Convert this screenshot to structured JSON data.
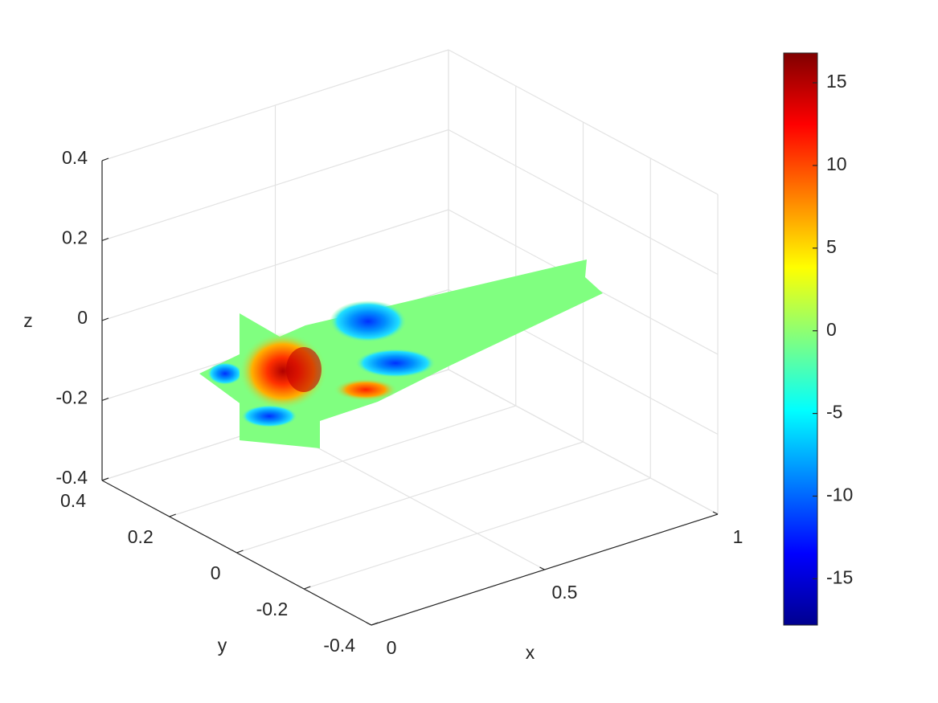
{
  "chart_data": {
    "type": "slice",
    "x_label": "x",
    "y_label": "y",
    "z_label": "z",
    "xlim": [
      0,
      1
    ],
    "ylim": [
      -0.4,
      0.4
    ],
    "zlim": [
      -0.4,
      0.4
    ],
    "xticks": [
      0,
      0.5,
      1
    ],
    "yticks": [
      -0.4,
      -0.2,
      0,
      0.2,
      0.4
    ],
    "zticks": [
      -0.4,
      -0.2,
      0,
      0.2,
      0.4
    ],
    "grid": true,
    "colormap": "jet",
    "clim": [
      -17.8,
      16.8
    ],
    "cticks": [
      -15,
      -10,
      -5,
      0,
      5,
      10,
      15
    ]
  }
}
